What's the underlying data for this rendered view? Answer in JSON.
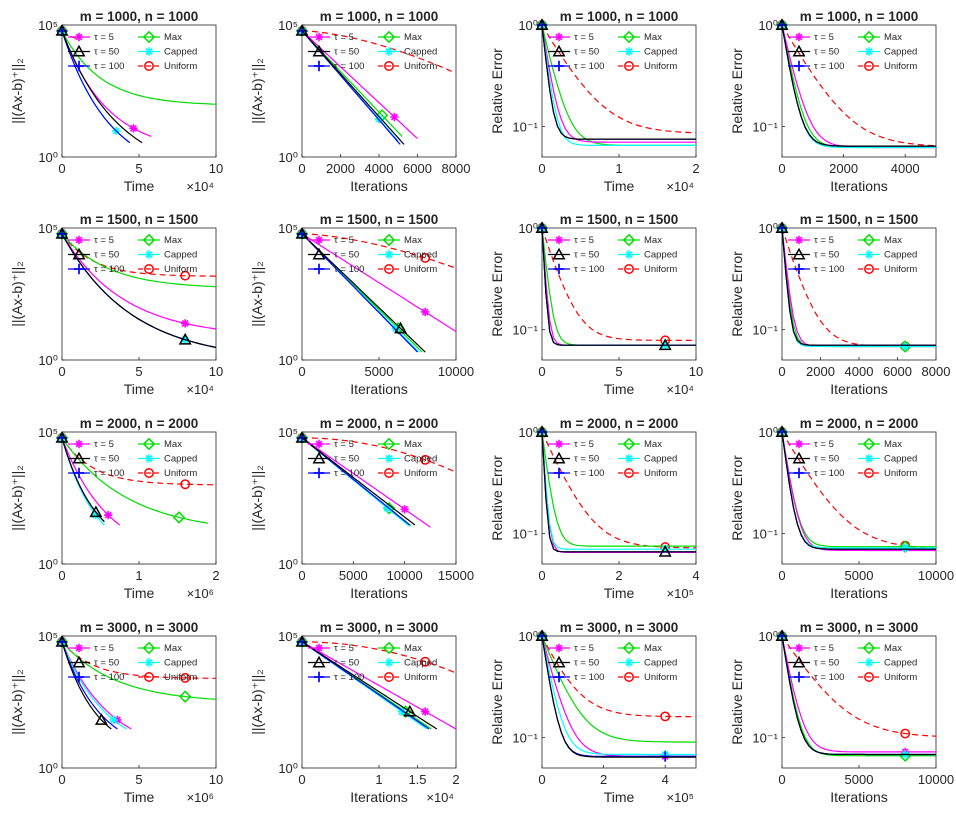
{
  "legend": {
    "entries": [
      "τ = 5",
      "τ = 50",
      "τ = 100",
      "Max",
      "Capped",
      "Uniform"
    ],
    "markers": [
      "asterisk",
      "triangle",
      "plus",
      "diamond",
      "asterisk",
      "circle"
    ],
    "colors": [
      "#ff00ff",
      "#000000",
      "#0000ff",
      "#00dd00",
      "#00ffff",
      "#ff0000"
    ]
  },
  "labels": {
    "ylabel_residual": "||(Ax-b)⁺||₂",
    "ylabel_error": "Relative Error",
    "x_time": "Time",
    "x_iter": "Iterations"
  },
  "chart_data": [
    {
      "type": "line",
      "title": "m = 1000, n = 1000",
      "xlabel": "Time",
      "ylabel": "||(Ax-b)⁺||₂",
      "yscale": "log",
      "ylim": [
        1,
        100000
      ],
      "yticks": [
        "10⁰",
        "10⁵"
      ],
      "xlim": [
        0,
        10
      ],
      "xticks": [
        "0",
        "5",
        "10"
      ],
      "xexp": "×10⁴",
      "kind": "res",
      "ends": [
        5.8,
        5.2,
        4.4,
        10,
        4.4,
        1.0
      ],
      "finals": [
        6,
        3.5,
        3.5,
        100,
        3.5,
        30000
      ],
      "marks": [
        1,
        0,
        0,
        0,
        1,
        0
      ],
      "shapes": [
        0.5,
        0.7,
        0.7,
        0.25,
        0.7,
        1
      ]
    },
    {
      "type": "line",
      "title": "m = 1000, n = 1000",
      "xlabel": "Iterations",
      "ylabel": "||(Ax-b)⁺||₂",
      "yscale": "log",
      "ylim": [
        1,
        100000
      ],
      "yticks": [
        "10⁰",
        "10⁵"
      ],
      "xlim": [
        0,
        8000
      ],
      "xticks": [
        "0",
        "2000",
        "4000",
        "6000",
        "8000"
      ],
      "xexp": "",
      "kind": "resiter",
      "ends": [
        6000,
        5300,
        5100,
        5200,
        5000,
        8000
      ],
      "finals": [
        5,
        3,
        3,
        6,
        4,
        1500
      ],
      "marks": [
        1,
        0,
        0,
        1,
        1,
        0
      ],
      "shapes": [
        1,
        1,
        1,
        1,
        1,
        1.6
      ]
    },
    {
      "type": "line",
      "title": "m = 1000, n = 1000",
      "xlabel": "Time",
      "ylabel": "Relative Error",
      "yscale": "log",
      "ylim": [
        0.05,
        1
      ],
      "yticks": [
        "10⁻¹",
        "10⁰"
      ],
      "xlim": [
        0,
        2
      ],
      "xticks": [
        "0",
        "1",
        "2"
      ],
      "xexp": "×10⁴",
      "kind": "err",
      "ends": [
        2,
        2,
        2,
        2,
        2,
        2
      ],
      "finals": [
        0.07,
        0.075,
        0.075,
        0.065,
        0.065,
        0.085
      ],
      "marks": [
        0,
        0,
        0,
        0,
        0,
        0
      ],
      "shapes": [
        0.12,
        0.08,
        0.08,
        0.18,
        0.1,
        0.45
      ]
    },
    {
      "type": "line",
      "title": "m = 1000, n = 1000",
      "xlabel": "Iterations",
      "ylabel": "Relative Error",
      "yscale": "log",
      "ylim": [
        0.05,
        1
      ],
      "yticks": [
        "10⁻¹",
        "10⁰"
      ],
      "xlim": [
        0,
        5000
      ],
      "xticks": [
        "0",
        "2000",
        "4000"
      ],
      "xexp": "",
      "kind": "err",
      "ends": [
        5000,
        5000,
        5000,
        5000,
        5000,
        5000
      ],
      "finals": [
        0.062,
        0.064,
        0.064,
        0.062,
        0.062,
        0.063
      ],
      "marks": [
        0,
        0,
        0,
        0,
        0,
        0
      ],
      "shapes": [
        0.18,
        0.13,
        0.13,
        0.15,
        0.13,
        0.45
      ]
    },
    {
      "type": "line",
      "title": "m = 1500, n = 1500",
      "xlabel": "Time",
      "ylabel": "||(Ax-b)⁺||₂",
      "yscale": "log",
      "ylim": [
        1,
        100000
      ],
      "yticks": [
        "10⁰",
        "10⁵"
      ],
      "xlim": [
        0,
        10
      ],
      "xticks": [
        "0",
        "5",
        "10"
      ],
      "xexp": "×10⁴",
      "kind": "res",
      "ends": [
        10,
        10,
        10,
        10,
        10,
        10
      ],
      "finals": [
        15,
        3,
        3,
        600,
        3,
        1500
      ],
      "marks": [
        1,
        1,
        0,
        0,
        1,
        1
      ],
      "shapes": [
        0.4,
        0.45,
        0.45,
        0.3,
        0.45,
        0.2
      ]
    },
    {
      "type": "line",
      "title": "m = 1500, n = 1500",
      "xlabel": "Iterations",
      "ylabel": "||(Ax-b)⁺||₂",
      "yscale": "log",
      "ylim": [
        1,
        100000
      ],
      "yticks": [
        "10⁰",
        "10⁵"
      ],
      "xlim": [
        0,
        10000
      ],
      "xticks": [
        "0",
        "5000",
        "10000"
      ],
      "xexp": "",
      "kind": "resiter",
      "ends": [
        10000,
        8000,
        7500,
        7800,
        7600,
        10000
      ],
      "finals": [
        12,
        2,
        2,
        2,
        2,
        3000
      ],
      "marks": [
        1,
        1,
        0,
        1,
        1,
        1
      ],
      "shapes": [
        1,
        1,
        1,
        1,
        1,
        1.6
      ]
    },
    {
      "type": "line",
      "title": "m = 1500, n = 1500",
      "xlabel": "Time",
      "ylabel": "Relative Error",
      "yscale": "log",
      "ylim": [
        0.05,
        1
      ],
      "yticks": [
        "10⁻¹",
        "10⁰"
      ],
      "xlim": [
        0,
        10
      ],
      "xticks": [
        "0",
        "5",
        "10"
      ],
      "xexp": "×10⁴",
      "kind": "err",
      "ends": [
        10,
        10,
        10,
        10,
        10,
        10
      ],
      "finals": [
        0.07,
        0.07,
        0.07,
        0.07,
        0.07,
        0.078
      ],
      "marks": [
        0,
        1,
        0,
        0,
        1,
        1
      ],
      "shapes": [
        0.05,
        0.04,
        0.04,
        0.08,
        0.04,
        0.25
      ]
    },
    {
      "type": "line",
      "title": "m = 1500, n = 1500",
      "xlabel": "Iterations",
      "ylabel": "Relative Error",
      "yscale": "log",
      "ylim": [
        0.05,
        1
      ],
      "yticks": [
        "10⁻¹",
        "10⁰"
      ],
      "xlim": [
        0,
        8000
      ],
      "xticks": [
        "0",
        "2000",
        "4000",
        "6000",
        "8000"
      ],
      "xexp": "",
      "kind": "err",
      "ends": [
        8000,
        8000,
        8000,
        8000,
        8000,
        8000
      ],
      "finals": [
        0.068,
        0.07,
        0.07,
        0.068,
        0.068,
        0.068
      ],
      "marks": [
        0,
        0,
        0,
        1,
        1,
        1
      ],
      "shapes": [
        0.08,
        0.06,
        0.06,
        0.07,
        0.06,
        0.25
      ]
    },
    {
      "type": "line",
      "title": "m = 2000, n = 2000",
      "xlabel": "Time",
      "ylabel": "||(Ax-b)⁺||₂",
      "yscale": "log",
      "ylim": [
        1,
        100000
      ],
      "yticks": [
        "10⁰",
        "10⁵"
      ],
      "xlim": [
        0,
        2
      ],
      "xticks": [
        "0",
        "1",
        "2"
      ],
      "xexp": "×10⁶",
      "kind": "res",
      "ends": [
        0.75,
        0.55,
        0.55,
        1.9,
        0.55,
        2
      ],
      "finals": [
        30,
        40,
        40,
        35,
        30,
        1000
      ],
      "marks": [
        1,
        1,
        0,
        1,
        1,
        1
      ],
      "shapes": [
        0.8,
        0.8,
        0.8,
        0.45,
        0.8,
        0.2
      ]
    },
    {
      "type": "line",
      "title": "m = 2000, n = 2000",
      "xlabel": "Iterations",
      "ylabel": "||(Ax-b)⁺||₂",
      "yscale": "log",
      "ylim": [
        1,
        100000
      ],
      "yticks": [
        "10⁰",
        "10⁵"
      ],
      "xlim": [
        0,
        15000
      ],
      "xticks": [
        "0",
        "5000",
        "10000",
        "15000"
      ],
      "xexp": "",
      "kind": "resiter",
      "ends": [
        12500,
        11000,
        10500,
        10600,
        10400,
        15000
      ],
      "finals": [
        25,
        30,
        30,
        28,
        28,
        3000
      ],
      "marks": [
        1,
        0,
        0,
        1,
        1,
        1
      ],
      "shapes": [
        1,
        1,
        1,
        1,
        1,
        2
      ]
    },
    {
      "type": "line",
      "title": "m = 2000, n = 2000",
      "xlabel": "Time",
      "ylabel": "Relative Error",
      "yscale": "log",
      "ylim": [
        0.05,
        1
      ],
      "yticks": [
        "10⁻¹",
        "10⁰"
      ],
      "xlim": [
        0,
        4
      ],
      "xticks": [
        "0",
        "2",
        "4"
      ],
      "xexp": "×10⁵",
      "kind": "err",
      "ends": [
        4,
        4,
        4,
        4,
        4,
        4
      ],
      "finals": [
        0.065,
        0.066,
        0.066,
        0.075,
        0.07,
        0.072
      ],
      "marks": [
        0,
        1,
        0,
        0,
        1,
        1
      ],
      "shapes": [
        0.05,
        0.04,
        0.04,
        0.1,
        0.05,
        0.35
      ]
    },
    {
      "type": "line",
      "title": "m = 2000, n = 2000",
      "xlabel": "Iterations",
      "ylabel": "Relative Error",
      "yscale": "log",
      "ylim": [
        0.05,
        1
      ],
      "yticks": [
        "10⁻¹",
        "10⁰"
      ],
      "xlim": [
        0,
        10000
      ],
      "xticks": [
        "0",
        "5000",
        "10000"
      ],
      "xexp": "",
      "kind": "err",
      "ends": [
        10000,
        10000,
        10000,
        10000,
        10000,
        10000
      ],
      "finals": [
        0.068,
        0.07,
        0.07,
        0.074,
        0.072,
        0.07
      ],
      "marks": [
        0,
        0,
        0,
        1,
        1,
        1
      ],
      "shapes": [
        0.12,
        0.1,
        0.1,
        0.12,
        0.1,
        0.45
      ]
    },
    {
      "type": "line",
      "title": "m = 3000, n = 3000",
      "xlabel": "Time",
      "ylabel": "||(Ax-b)⁺||₂",
      "yscale": "log",
      "ylim": [
        1,
        100000
      ],
      "yticks": [
        "10⁰",
        "10⁵"
      ],
      "xlim": [
        0,
        10
      ],
      "xticks": [
        "0",
        "5",
        "10"
      ],
      "xexp": "×10⁶",
      "kind": "res",
      "ends": [
        4.5,
        3.2,
        3.6,
        10,
        4.2,
        10
      ],
      "finals": [
        30,
        30,
        30,
        400,
        30,
        2500
      ],
      "marks": [
        1,
        1,
        0,
        1,
        1,
        1
      ],
      "shapes": [
        0.7,
        0.7,
        0.7,
        0.35,
        0.7,
        0.2
      ]
    },
    {
      "type": "line",
      "title": "m = 3000, n = 3000",
      "xlabel": "Iterations",
      "ylabel": "||(Ax-b)⁺||₂",
      "yscale": "log",
      "ylim": [
        1,
        100000
      ],
      "yticks": [
        "10⁰",
        "10⁵"
      ],
      "xlim": [
        0,
        20000
      ],
      "xticks": [
        "0",
        "1",
        "1.5",
        "2"
      ],
      "xexp": "×10⁴",
      "kind": "resiter",
      "ends": [
        20000,
        17500,
        16500,
        16800,
        16200,
        20000
      ],
      "finals": [
        30,
        30,
        30,
        30,
        30,
        4000
      ],
      "marks": [
        1,
        1,
        0,
        1,
        1,
        1
      ],
      "shapes": [
        1,
        1,
        1,
        1,
        1,
        2
      ]
    },
    {
      "type": "line",
      "title": "m = 3000, n = 3000",
      "xlabel": "Time",
      "ylabel": "Relative Error",
      "yscale": "log",
      "ylim": [
        0.05,
        1
      ],
      "yticks": [
        "10⁻¹",
        "10⁰"
      ],
      "xlim": [
        0,
        5
      ],
      "xticks": [
        "0",
        "2",
        "4"
      ],
      "xexp": "×10⁵",
      "kind": "err",
      "ends": [
        5,
        5,
        5,
        5,
        5,
        5
      ],
      "finals": [
        0.065,
        0.064,
        0.065,
        0.09,
        0.068,
        0.16
      ],
      "marks": [
        1,
        0,
        1,
        0,
        1,
        1
      ],
      "shapes": [
        0.2,
        0.12,
        0.12,
        0.3,
        0.15,
        0.35
      ]
    },
    {
      "type": "line",
      "title": "m = 3000, n = 3000",
      "xlabel": "Iterations",
      "ylabel": "Relative Error",
      "yscale": "log",
      "ylim": [
        0.05,
        1
      ],
      "yticks": [
        "10⁻¹",
        "10⁰"
      ],
      "xlim": [
        0,
        10000
      ],
      "xticks": [
        "0",
        "5000",
        "10000"
      ],
      "xexp": "",
      "kind": "err",
      "ends": [
        10000,
        10000,
        10000,
        10000,
        10000,
        10000
      ],
      "finals": [
        0.072,
        0.068,
        0.068,
        0.066,
        0.068,
        0.1
      ],
      "marks": [
        1,
        0,
        0,
        1,
        1,
        1
      ],
      "shapes": [
        0.15,
        0.12,
        0.12,
        0.13,
        0.12,
        0.5
      ]
    }
  ]
}
